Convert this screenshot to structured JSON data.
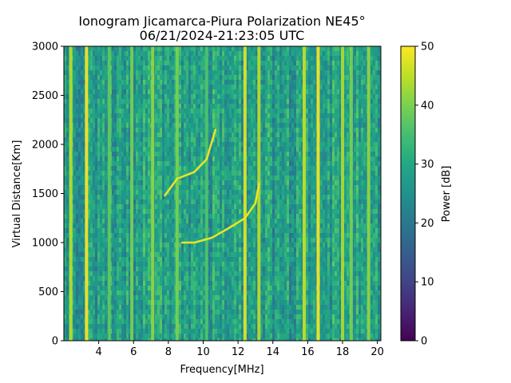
{
  "chart_data": {
    "type": "heatmap",
    "title_line1": "Ionogram Jicamarca-Piura Polarization NE45°",
    "title_line2": "06/21/2024-21:23:05 UTC",
    "xlabel": "Frequency[MHz]",
    "ylabel": "Virtual Distance[Km]",
    "colorbar_label": "Power [dB]",
    "colormap": "viridis",
    "xlim": [
      2.0,
      20.2
    ],
    "ylim": [
      0,
      3000
    ],
    "clim": [
      0,
      50
    ],
    "x_ticks": [
      4,
      6,
      8,
      10,
      12,
      14,
      16,
      18,
      20
    ],
    "y_ticks": [
      0,
      500,
      1000,
      1500,
      2000,
      2500,
      3000
    ],
    "colorbar_ticks": [
      0,
      10,
      20,
      30,
      40,
      50
    ],
    "background_level_db": 28,
    "vertical_bands_mhz": [
      {
        "freq": 2.4,
        "level": 45
      },
      {
        "freq": 3.3,
        "level": 50
      },
      {
        "freq": 4.6,
        "level": 38
      },
      {
        "freq": 5.9,
        "level": 40
      },
      {
        "freq": 7.1,
        "level": 42
      },
      {
        "freq": 8.5,
        "level": 40
      },
      {
        "freq": 10.2,
        "level": 36
      },
      {
        "freq": 12.4,
        "level": 48
      },
      {
        "freq": 13.2,
        "level": 45
      },
      {
        "freq": 15.8,
        "level": 46
      },
      {
        "freq": 16.6,
        "level": 50
      },
      {
        "freq": 18.0,
        "level": 44
      },
      {
        "freq": 18.5,
        "level": 40
      },
      {
        "freq": 19.5,
        "level": 42
      }
    ],
    "echo_traces": [
      {
        "name": "",
        "points": [
          [
            8.8,
            1000
          ],
          [
            9.5,
            1000
          ],
          [
            10.5,
            1050
          ],
          [
            11.5,
            1150
          ],
          [
            12.4,
            1250
          ],
          [
            13.0,
            1400
          ],
          [
            13.2,
            1600
          ]
        ]
      },
      {
        "name": "",
        "points": [
          [
            7.8,
            1480
          ],
          [
            8.5,
            1650
          ],
          [
            9.5,
            1720
          ],
          [
            10.2,
            1850
          ],
          [
            10.7,
            2150
          ]
        ]
      }
    ]
  }
}
